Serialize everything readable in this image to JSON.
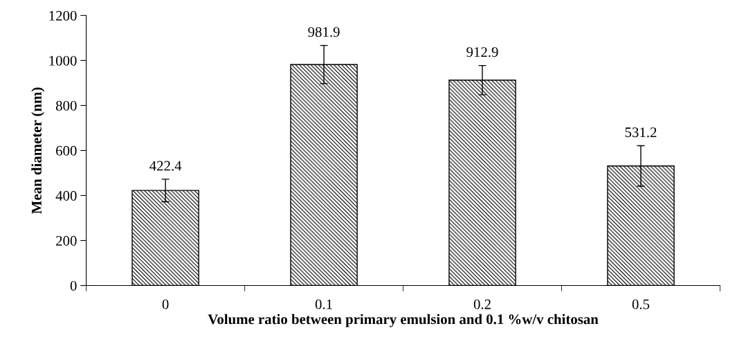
{
  "chart_data": {
    "type": "bar",
    "xlabel": "Volume ratio between primary emulsion and 0.1 %w/v chitosan",
    "ylabel": "Mean diameter (nm)",
    "categories": [
      "0",
      "0.1",
      "0.2",
      "0.5"
    ],
    "values": [
      422.4,
      981.9,
      912.9,
      531.2
    ],
    "errors": [
      50,
      85,
      65,
      90
    ],
    "color": "#000000",
    "data_labels": true,
    "ylim": [
      0,
      1200
    ],
    "yticks": [
      0,
      200,
      400,
      600,
      800,
      1000,
      1200
    ],
    "grid": false,
    "legend": false
  }
}
